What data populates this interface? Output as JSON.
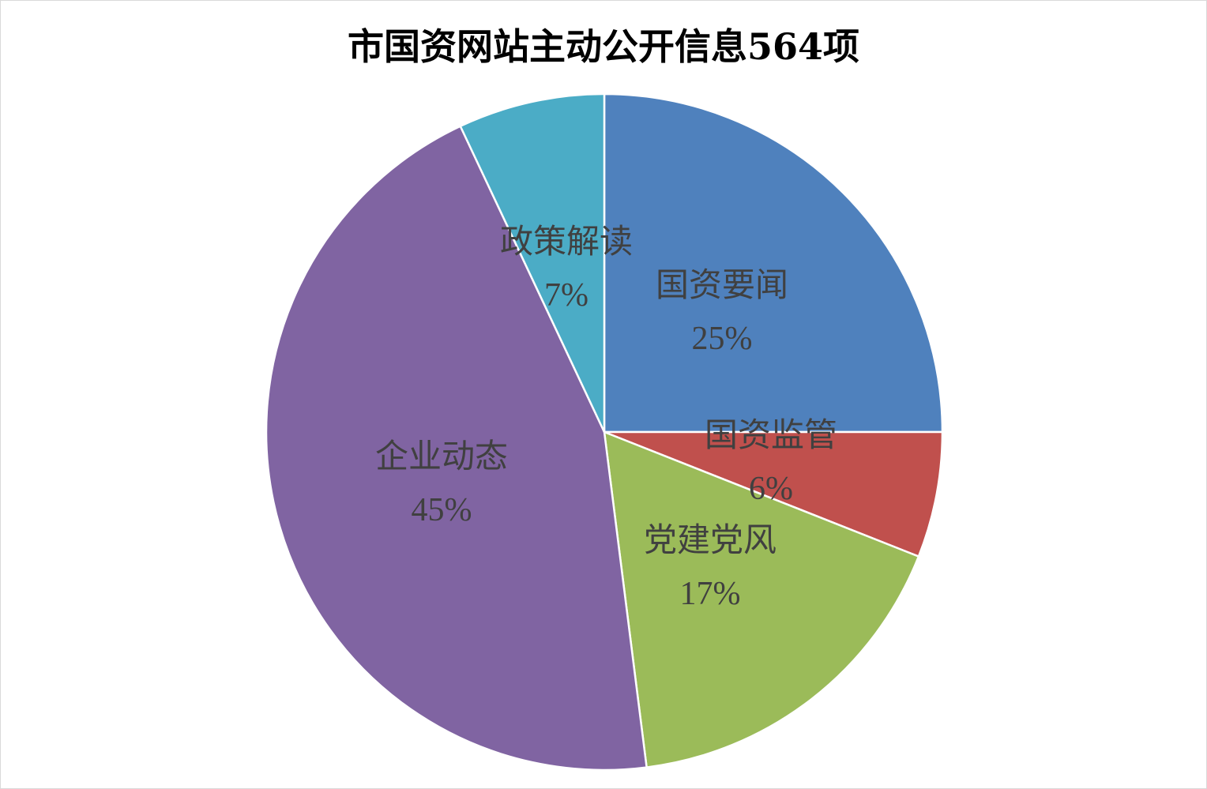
{
  "chart_data": {
    "type": "pie",
    "title": "市国资网站主动公开信息564项",
    "slices": [
      {
        "label": "国资要闻",
        "value": 25,
        "display": "25%",
        "color": "#4F81BD"
      },
      {
        "label": "国资监管",
        "value": 6,
        "display": "6%",
        "color": "#C0504D"
      },
      {
        "label": "党建党风",
        "value": 17,
        "display": "17%",
        "color": "#9BBB59"
      },
      {
        "label": "企业动态",
        "value": 45,
        "display": "45%",
        "color": "#8064A2"
      },
      {
        "label": "政策解读",
        "value": 7,
        "display": "7%",
        "color": "#4BACC6"
      }
    ],
    "start": "12 o'clock",
    "direction": "clockwise",
    "legend": "none"
  }
}
